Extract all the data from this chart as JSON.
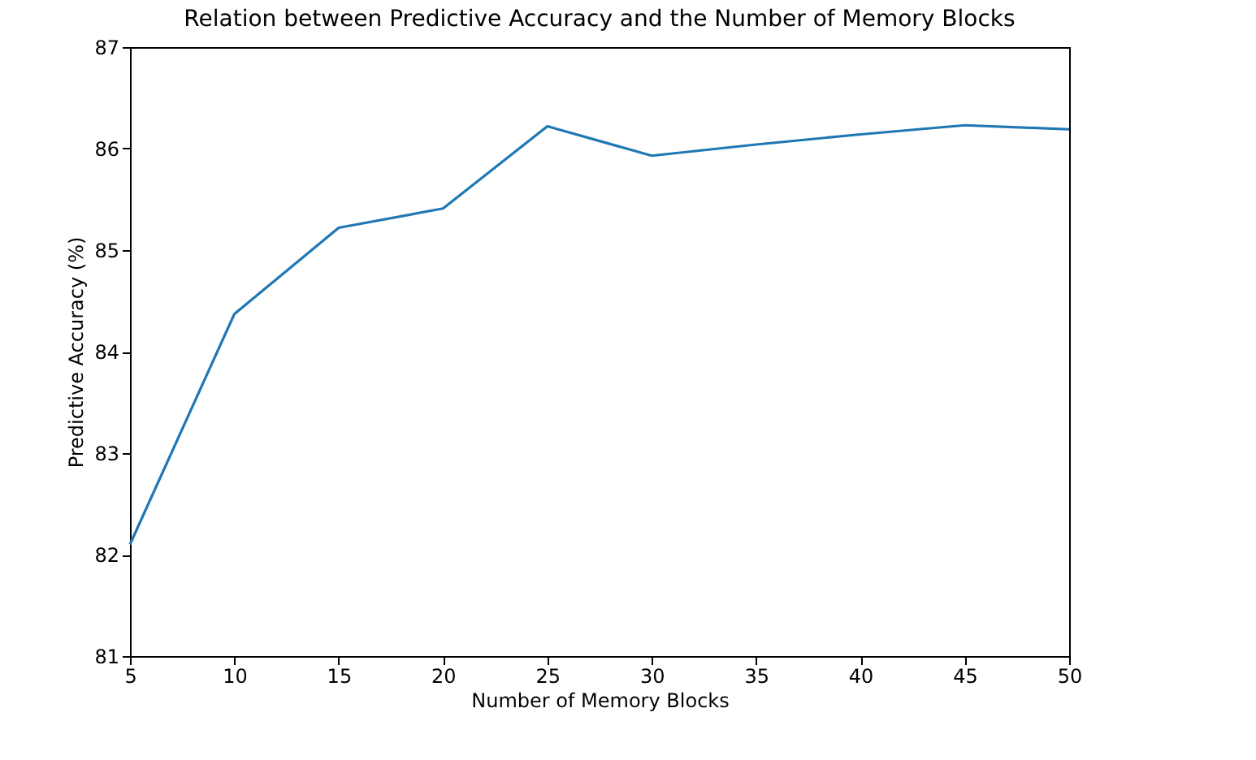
{
  "chart_data": {
    "type": "line",
    "title": "Relation between Predictive Accuracy and the Number of Memory Blocks",
    "xlabel": "Number of Memory Blocks",
    "ylabel": "Predictive Accuracy (%)",
    "x": [
      5,
      10,
      15,
      20,
      25,
      30,
      35,
      40,
      45,
      50
    ],
    "series": [
      {
        "color": "#1f77b4",
        "values": [
          82.1,
          84.37,
          85.22,
          85.41,
          86.22,
          85.93,
          86.04,
          86.14,
          86.23,
          86.19
        ]
      }
    ],
    "xlim": [
      5,
      50
    ],
    "xticks": [
      5,
      10,
      15,
      20,
      25,
      30,
      35,
      40,
      45,
      50
    ],
    "ylim": [
      81,
      87
    ],
    "yticks": [
      81,
      82,
      83,
      84,
      85,
      86,
      87
    ],
    "grid": false,
    "legend": false,
    "marker": "none",
    "line_style": "solid"
  }
}
